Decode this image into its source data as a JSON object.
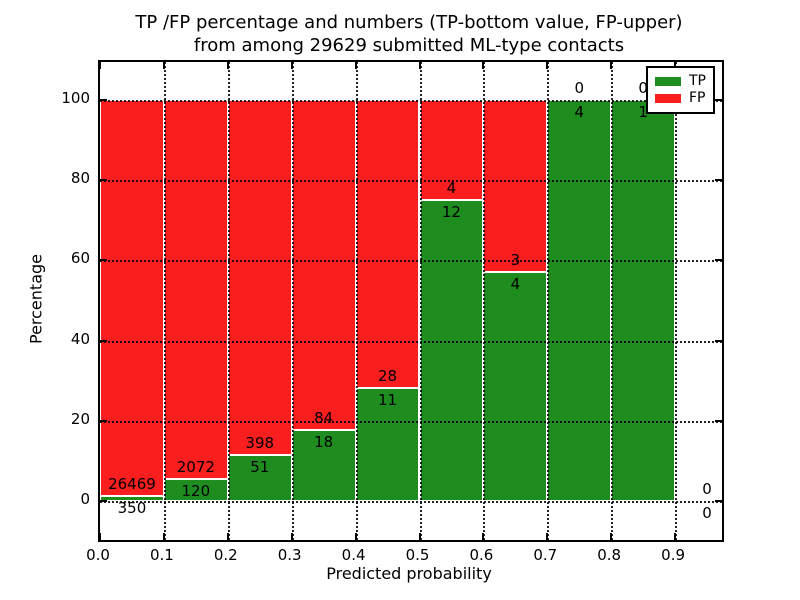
{
  "title": {
    "line1": "TP /FP percentage and numbers (TP-bottom value, FP-upper)",
    "line2": "from among 29629 submitted ML-type contacts"
  },
  "axes": {
    "xlabel": "Predicted probability",
    "ylabel": "Percentage",
    "y_ticks": [
      {
        "value": 0,
        "label": "0"
      },
      {
        "value": 20,
        "label": "20"
      },
      {
        "value": 40,
        "label": "40"
      },
      {
        "value": 60,
        "label": "60"
      },
      {
        "value": 80,
        "label": "80"
      },
      {
        "value": 100,
        "label": "100"
      }
    ],
    "x_ticks": [
      {
        "value": 0.0,
        "label": "0.0"
      },
      {
        "value": 0.1,
        "label": "0.1"
      },
      {
        "value": 0.2,
        "label": "0.2"
      },
      {
        "value": 0.3,
        "label": "0.3"
      },
      {
        "value": 0.4,
        "label": "0.4"
      },
      {
        "value": 0.5,
        "label": "0.5"
      },
      {
        "value": 0.6,
        "label": "0.6"
      },
      {
        "value": 0.7,
        "label": "0.7"
      },
      {
        "value": 0.8,
        "label": "0.8"
      },
      {
        "value": 0.9,
        "label": "0.9"
      }
    ]
  },
  "legend": {
    "items": [
      {
        "label": "TP",
        "color": "#1e8c1e"
      },
      {
        "label": "FP",
        "color": "#fa1e1e"
      }
    ],
    "position": "upper right"
  },
  "colors": {
    "tp": "#1e8c1e",
    "fp": "#fa1e1e",
    "grid": "#000000",
    "background": "#ffffff",
    "bar_edge": "#ffffff"
  },
  "chart_data": {
    "type": "bar",
    "stacked": true,
    "title": "TP /FP percentage and numbers (TP-bottom value, FP-upper) from among 29629 submitted ML-type contacts",
    "xlabel": "Predicted probability",
    "ylabel": "Percentage",
    "total_submitted": 29629,
    "bin_edges": [
      0.0,
      0.1,
      0.2,
      0.3,
      0.4,
      0.5,
      0.6,
      0.7,
      0.8,
      0.9,
      1.0
    ],
    "categories": [
      "0.0-0.1",
      "0.1-0.2",
      "0.2-0.3",
      "0.3-0.4",
      "0.4-0.5",
      "0.5-0.6",
      "0.6-0.7",
      "0.7-0.8",
      "0.8-0.9",
      "0.9-1.0"
    ],
    "series": [
      {
        "name": "TP",
        "color": "#1e8c1e",
        "counts": [
          350,
          120,
          51,
          18,
          11,
          12,
          4,
          4,
          1,
          0
        ],
        "percent": [
          1.31,
          5.47,
          11.36,
          17.65,
          28.21,
          75.0,
          57.14,
          100.0,
          100.0,
          0.0
        ]
      },
      {
        "name": "FP",
        "color": "#fa1e1e",
        "counts": [
          26469,
          2072,
          398,
          84,
          28,
          4,
          3,
          0,
          0,
          0
        ],
        "percent": [
          98.69,
          94.53,
          88.64,
          82.35,
          71.79,
          25.0,
          42.86,
          0.0,
          0.0,
          0.0
        ]
      }
    ],
    "bar_width": 0.1,
    "ylim": [
      -9.7,
      109.5
    ],
    "xlim": [
      0.0,
      0.973
    ],
    "grid": true,
    "grid_style": "dotted",
    "legend_position": "upper right",
    "annotation_note": "TP count shown below segment boundary, FP count shown above segment boundary"
  }
}
